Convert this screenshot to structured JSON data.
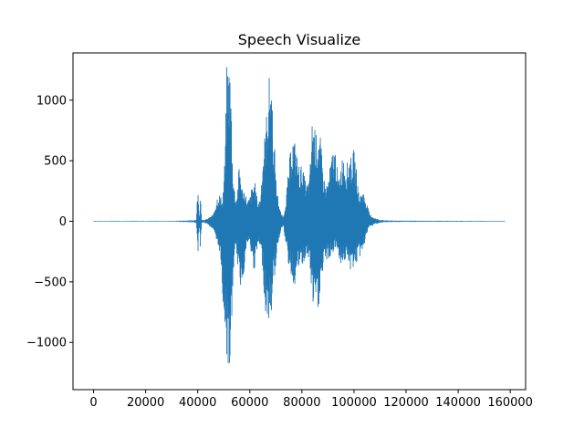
{
  "chart_data": {
    "type": "line",
    "title": "Speech Visualize",
    "xlabel": "",
    "ylabel": "",
    "xlim": [
      -7900,
      165900
    ],
    "ylim": [
      -1390,
      1390
    ],
    "x_ticks": [
      0,
      20000,
      40000,
      60000,
      80000,
      100000,
      120000,
      140000,
      160000
    ],
    "y_ticks": [
      -1000,
      -500,
      0,
      500,
      1000
    ],
    "y_tick_labels": [
      "−1000",
      "−500",
      "0",
      "500",
      "1000"
    ],
    "grid": false,
    "legend": "none",
    "series": [
      {
        "color": "#1f77b4",
        "sample_count": 158000,
        "x": [
          0,
          30000,
          38000,
          39500,
          40000,
          40600,
          41000,
          41500,
          42500,
          44000,
          46000,
          47500,
          48500,
          49500,
          50500,
          51200,
          51800,
          52300,
          52800,
          53300,
          53800,
          54300,
          55000,
          56000,
          57000,
          58000,
          59000,
          60000,
          61000,
          62000,
          63000,
          64000,
          65000,
          66000,
          67000,
          67800,
          68500,
          69000,
          69600,
          70200,
          71000,
          72000,
          73000,
          74000,
          75000,
          76000,
          77000,
          78000,
          79000,
          80000,
          81000,
          82000,
          83000,
          84000,
          84800,
          85500,
          86300,
          87000,
          88000,
          89000,
          90000,
          91000,
          92000,
          93000,
          94000,
          95000,
          96000,
          97000,
          98000,
          99000,
          100000,
          101000,
          102000,
          103000,
          104000,
          105000,
          106000,
          107000,
          108000,
          109000,
          110000,
          112000,
          115000,
          120000,
          130000,
          158000
        ],
        "pos": [
          3,
          3,
          8,
          15,
          300,
          25,
          260,
          15,
          10,
          25,
          60,
          210,
          230,
          170,
          560,
          1330,
          1320,
          1290,
          1060,
          520,
          360,
          230,
          200,
          500,
          280,
          270,
          170,
          200,
          310,
          320,
          170,
          190,
          550,
          780,
          1070,
          1300,
          1150,
          700,
          600,
          300,
          190,
          60,
          40,
          230,
          450,
          680,
          700,
          570,
          450,
          470,
          370,
          300,
          380,
          860,
          840,
          720,
          750,
          720,
          450,
          300,
          340,
          480,
          610,
          600,
          330,
          480,
          590,
          450,
          540,
          530,
          600,
          420,
          200,
          260,
          230,
          150,
          60,
          45,
          25,
          20,
          12,
          8,
          6,
          5,
          4,
          3
        ],
        "neg": [
          -3,
          -3,
          -8,
          -15,
          -320,
          -25,
          -260,
          -15,
          -10,
          -30,
          -70,
          -230,
          -250,
          -640,
          -890,
          -1120,
          -1240,
          -1260,
          -1000,
          -740,
          -390,
          -290,
          -270,
          -560,
          -520,
          -380,
          -190,
          -200,
          -370,
          -420,
          -200,
          -240,
          -400,
          -780,
          -820,
          -860,
          -720,
          -480,
          -470,
          -300,
          -180,
          -60,
          -40,
          -260,
          -380,
          -460,
          -560,
          -440,
          -380,
          -400,
          -330,
          -300,
          -360,
          -700,
          -750,
          -740,
          -760,
          -600,
          -450,
          -340,
          -310,
          -330,
          -260,
          -240,
          -260,
          -380,
          -330,
          -330,
          -380,
          -440,
          -360,
          -360,
          -300,
          -290,
          -190,
          -100,
          -50,
          -40,
          -25,
          -20,
          -12,
          -8,
          -6,
          -5,
          -4,
          -3
        ]
      }
    ]
  }
}
